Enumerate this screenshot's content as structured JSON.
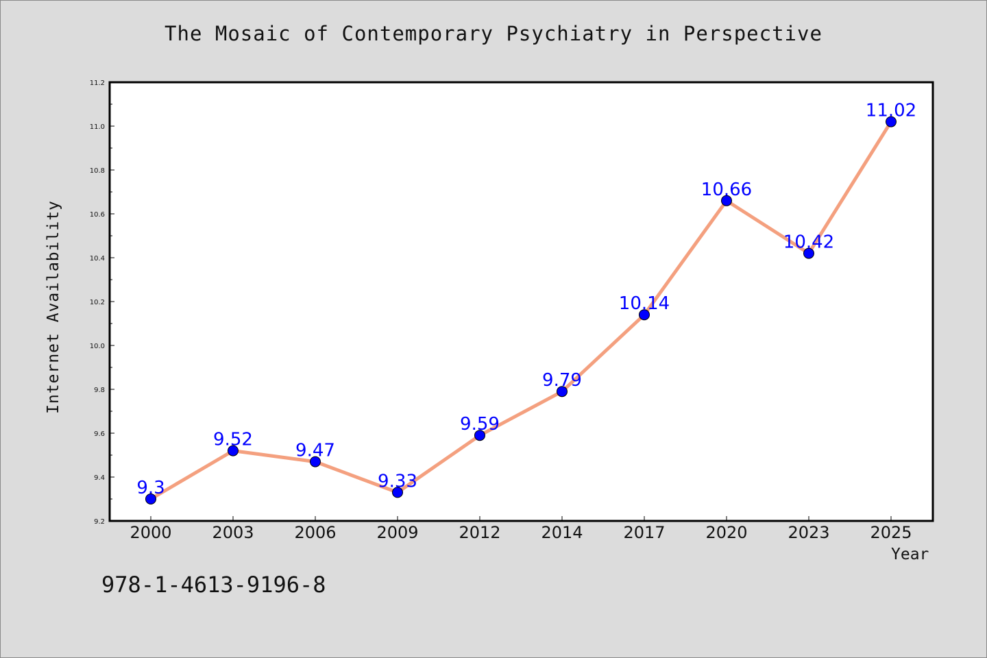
{
  "chart_data": {
    "type": "line",
    "title": "The Mosaic of Contemporary Psychiatry in Perspective",
    "xlabel": "Year",
    "ylabel": "Internet Availability",
    "categories": [
      "2000",
      "2003",
      "2006",
      "2009",
      "2012",
      "2014",
      "2017",
      "2020",
      "2023",
      "2025"
    ],
    "series": [
      {
        "values": [
          9.3,
          9.52,
          9.47,
          9.33,
          9.59,
          9.79,
          10.14,
          10.66,
          10.42,
          11.02
        ],
        "labels": [
          "9.3",
          "9.52",
          "9.47",
          "9.33",
          "9.59",
          "9.79",
          "10.14",
          "10.66",
          "10.42",
          "11.02"
        ]
      }
    ],
    "ylim": [
      9.2,
      11.2
    ],
    "yticks": [
      "9.2",
      "9.4",
      "9.6",
      "9.8",
      "10.0",
      "10.2",
      "10.4",
      "10.6",
      "10.8",
      "11.0",
      "11.2"
    ],
    "grid": false,
    "colors": {
      "line": "#f4a07f",
      "marker": "#0000ff",
      "label": "#0000ff",
      "background": "#dcdcdc",
      "plot_background": "#ffffff"
    }
  },
  "footer": {
    "isbn": "978-1-4613-9196-8"
  }
}
